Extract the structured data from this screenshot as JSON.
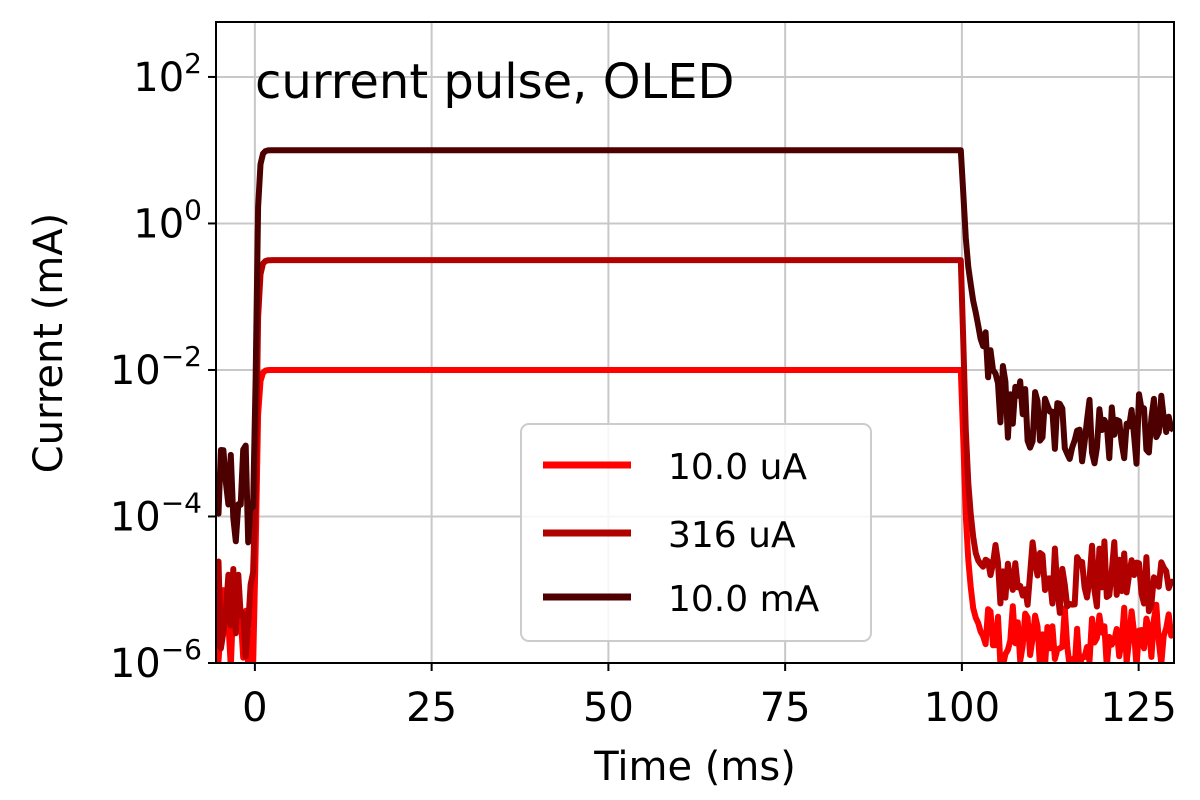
{
  "chart_data": {
    "type": "line",
    "title": "",
    "annotation": "current pulse, OLED",
    "xlabel": "Time (ms)",
    "ylabel": "Current (mA)",
    "xlim": [
      -5.5,
      130
    ],
    "ylim_log10": [
      -6,
      2.75
    ],
    "yscale": "log",
    "grid": true,
    "legend_position": "lower-center",
    "x_ticks": [
      {
        "value": 0,
        "label": "0"
      },
      {
        "value": 25,
        "label": "25"
      },
      {
        "value": 50,
        "label": "50"
      },
      {
        "value": 75,
        "label": "75"
      },
      {
        "value": 100,
        "label": "100"
      },
      {
        "value": 125,
        "label": "125"
      }
    ],
    "y_ticks": [
      {
        "exp": 2,
        "base": "10",
        "sup": "2"
      },
      {
        "exp": 0,
        "base": "10",
        "sup": "0"
      },
      {
        "exp": -2,
        "base": "10",
        "sup": "−2"
      },
      {
        "exp": -4,
        "base": "10",
        "sup": "−4"
      },
      {
        "exp": -6,
        "base": "10",
        "sup": "−6"
      }
    ],
    "pulse_start_ms": 0,
    "pulse_end_ms": 100,
    "series": [
      {
        "name": "10.0 uA",
        "color": "#ff0000",
        "plateau_mA": 0.01,
        "baseline_mA": 2e-06,
        "tail_mA": 2e-06
      },
      {
        "name": "316 uA",
        "color": "#b00000",
        "plateau_mA": 0.316,
        "baseline_mA": 6e-06,
        "tail_mA": 1.5e-05
      },
      {
        "name": "10.0 mA",
        "color": "#4d0000",
        "plateau_mA": 10.0,
        "baseline_mA": 0.0002,
        "tail_mA": 0.0015
      }
    ]
  }
}
